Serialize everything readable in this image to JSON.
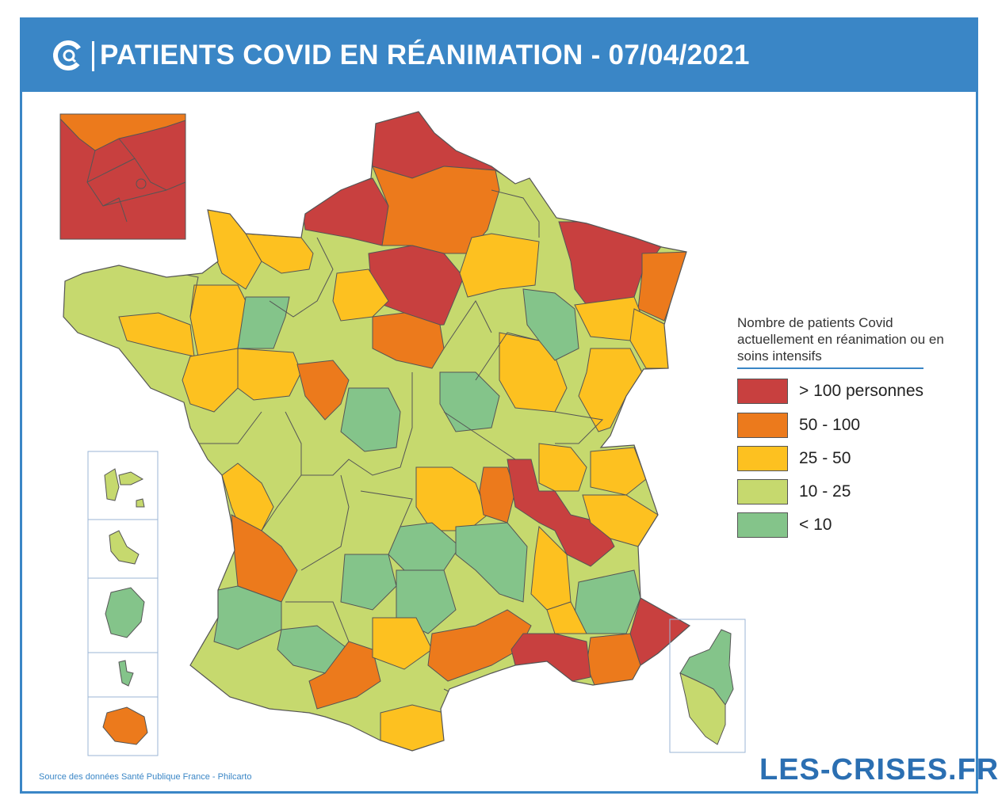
{
  "header": {
    "title": "PATIENTS COVID EN RÉANIMATION - 07/04/2021"
  },
  "colors": {
    "brand_blue": "#3a86c6",
    "over_100": "#c8403f",
    "50_100": "#ec7a1c",
    "25_50": "#fdc120",
    "10_25": "#c6d96e",
    "under_10": "#84c48a"
  },
  "legend": {
    "title": "Nombre de patients Covid actuellement en réanimation ou en soins intensifs",
    "items": [
      {
        "label": "> 100 personnes",
        "color": "#c8403f"
      },
      {
        "label": "50 - 100",
        "color": "#ec7a1c"
      },
      {
        "label": "25 - 50",
        "color": "#fdc120"
      },
      {
        "label": "10 - 25",
        "color": "#c6d96e"
      },
      {
        "label": "< 10",
        "color": "#84c48a"
      }
    ]
  },
  "footer": {
    "source": "Source des données Santé Publique France - Philcarto",
    "brand": "LES-CRISES.FR"
  },
  "icons": [
    "logo-icon"
  ]
}
